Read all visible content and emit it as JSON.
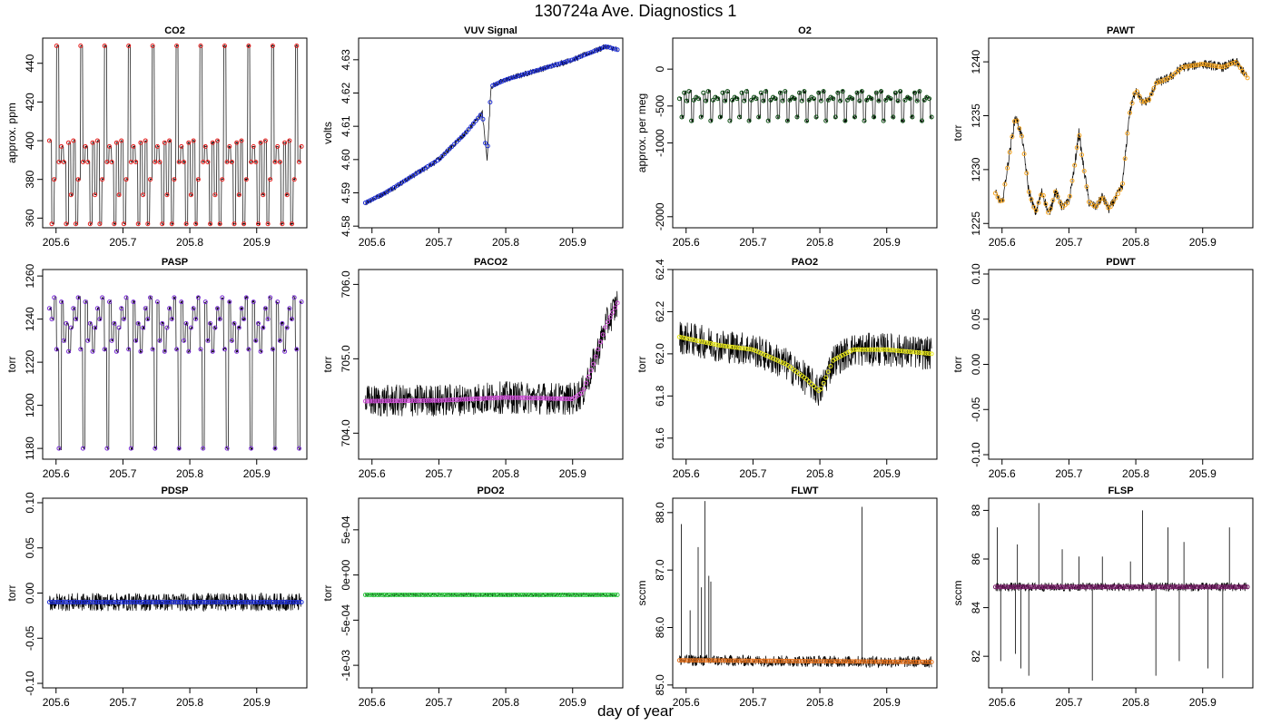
{
  "figure": {
    "title": "130724a   Ave. Diagnostics 1",
    "xlabel": "day of year"
  },
  "chart_data": [
    {
      "id": "co2",
      "type": "scatter",
      "title": "CO2",
      "ylabel": "approx. ppm",
      "xlim": [
        205.58,
        205.975
      ],
      "ylim": [
        355,
        453
      ],
      "xticks": [
        205.6,
        205.7,
        205.8,
        205.9
      ],
      "xtick_labels": [
        "205.6",
        "205.7",
        "205.8",
        "205.9"
      ],
      "yticks": [
        360,
        380,
        400,
        420,
        440
      ],
      "ytick_labels": [
        "360",
        "380",
        "400",
        "420",
        "440"
      ],
      "raw_series_color": "#000000",
      "avg_marker_color": "#e8201f",
      "levels_cycle": [
        400,
        357,
        380,
        449,
        389,
        397,
        389,
        357,
        399,
        372
      ],
      "level_days": 0.00357,
      "start": 205.59,
      "end": 205.967,
      "noise": 0.4
    },
    {
      "id": "vuv",
      "type": "scatter",
      "title": "VUV Signal",
      "ylabel": "volts",
      "xlim": [
        205.58,
        205.975
      ],
      "ylim": [
        4.5795,
        4.6365
      ],
      "xticks": [
        205.6,
        205.7,
        205.8,
        205.9
      ],
      "xtick_labels": [
        "205.6",
        "205.7",
        "205.8",
        "205.9"
      ],
      "yticks": [
        4.58,
        4.59,
        4.6,
        4.61,
        4.62,
        4.63
      ],
      "ytick_labels": [
        "4.58",
        "4.59",
        "4.60",
        "4.61",
        "4.62",
        "4.63"
      ],
      "raw_series_color": "#000000",
      "avg_marker_color": "#1f2fd6",
      "trend": [
        [
          205.59,
          4.587
        ],
        [
          205.62,
          4.59
        ],
        [
          205.66,
          4.595
        ],
        [
          205.7,
          4.6
        ],
        [
          205.74,
          4.608
        ],
        [
          205.765,
          4.614
        ],
        [
          205.772,
          4.6
        ],
        [
          205.775,
          4.611
        ],
        [
          205.778,
          4.622
        ],
        [
          205.8,
          4.624
        ],
        [
          205.85,
          4.627
        ],
        [
          205.9,
          4.63
        ],
        [
          205.95,
          4.634
        ],
        [
          205.967,
          4.633
        ]
      ],
      "start": 205.59,
      "end": 205.967,
      "noise": 0.0009
    },
    {
      "id": "o2",
      "type": "scatter",
      "title": "O2",
      "ylabel": "approx. per meg",
      "xlim": [
        205.58,
        205.975
      ],
      "ylim": [
        -2150,
        420
      ],
      "xticks": [
        205.6,
        205.7,
        205.8,
        205.9
      ],
      "xtick_labels": [
        "205.6",
        "205.7",
        "205.8",
        "205.9"
      ],
      "yticks": [
        -2000,
        -1000,
        -500,
        0
      ],
      "ytick_labels": [
        "-2000",
        "-1000",
        "-500",
        "0"
      ],
      "raw_series_color": "#000000",
      "avg_marker_color": "#0b4d12",
      "levels_cycle": [
        -400,
        -650,
        -320,
        -430,
        -300,
        -700,
        -420,
        -380
      ],
      "level_days": 0.00357,
      "start": 205.59,
      "end": 205.967,
      "noise": 25
    },
    {
      "id": "pawt",
      "type": "scatter",
      "title": "PAWT",
      "ylabel": "torr",
      "xlim": [
        205.58,
        205.975
      ],
      "ylim": [
        1224.6,
        1242.2
      ],
      "xticks": [
        205.6,
        205.7,
        205.8,
        205.9
      ],
      "xtick_labels": [
        "205.6",
        "205.7",
        "205.8",
        "205.9"
      ],
      "yticks": [
        1225,
        1230,
        1235,
        1240
      ],
      "ytick_labels": [
        "1225",
        "1230",
        "1235",
        "1240"
      ],
      "raw_series_color": "#000000",
      "avg_marker_color": "#f5a623",
      "trend": [
        [
          205.59,
          1227.8
        ],
        [
          205.6,
          1226.8
        ],
        [
          205.61,
          1231
        ],
        [
          205.62,
          1235
        ],
        [
          205.63,
          1233
        ],
        [
          205.64,
          1228
        ],
        [
          205.65,
          1226
        ],
        [
          205.66,
          1228
        ],
        [
          205.67,
          1225.8
        ],
        [
          205.68,
          1228
        ],
        [
          205.69,
          1226.5
        ],
        [
          205.7,
          1227
        ],
        [
          205.71,
          1231
        ],
        [
          205.715,
          1233.5
        ],
        [
          205.72,
          1231
        ],
        [
          205.73,
          1227
        ],
        [
          205.74,
          1226.5
        ],
        [
          205.75,
          1227.5
        ],
        [
          205.76,
          1226.3
        ],
        [
          205.78,
          1228.5
        ],
        [
          205.79,
          1235
        ],
        [
          205.8,
          1237.5
        ],
        [
          205.81,
          1236.2
        ],
        [
          205.82,
          1236.5
        ],
        [
          205.83,
          1238
        ],
        [
          205.85,
          1238.5
        ],
        [
          205.87,
          1239.5
        ],
        [
          205.9,
          1239.8
        ],
        [
          205.93,
          1239.5
        ],
        [
          205.95,
          1240
        ],
        [
          205.967,
          1238.5
        ]
      ],
      "start": 205.59,
      "end": 205.967,
      "noise": 0.45
    },
    {
      "id": "pasp",
      "type": "scatter",
      "title": "PASP",
      "ylabel": "torr",
      "xlim": [
        205.58,
        205.975
      ],
      "ylim": [
        1175,
        1263
      ],
      "xticks": [
        205.6,
        205.7,
        205.8,
        205.9
      ],
      "xtick_labels": [
        "205.6",
        "205.7",
        "205.8",
        "205.9"
      ],
      "yticks": [
        1180,
        1200,
        1220,
        1240,
        1260
      ],
      "ytick_labels": [
        "1180",
        "1200",
        "1220",
        "1240",
        "1260"
      ],
      "raw_series_color": "#000000",
      "avg_marker_color": "#7b2fd6",
      "levels_cycle": [
        1245,
        1240,
        1250,
        1226,
        1180,
        1248,
        1230,
        1238,
        1225,
        1236
      ],
      "level_days": 0.00357,
      "start": 205.59,
      "end": 205.967,
      "noise": 0.8
    },
    {
      "id": "paco2",
      "type": "scatter",
      "title": "PACO2",
      "ylabel": "torr",
      "xlim": [
        205.58,
        205.975
      ],
      "ylim": [
        703.65,
        706.2
      ],
      "xticks": [
        205.6,
        205.7,
        205.8,
        205.9
      ],
      "xtick_labels": [
        "205.6",
        "205.7",
        "205.8",
        "205.9"
      ],
      "yticks": [
        704.0,
        705.0,
        706.0
      ],
      "ytick_labels": [
        "704.0",
        "705.0",
        "706.0"
      ],
      "raw_series_color": "#000000",
      "avg_marker_color": "#d04fd8",
      "trend": [
        [
          205.59,
          704.43
        ],
        [
          205.7,
          704.44
        ],
        [
          205.8,
          704.48
        ],
        [
          205.9,
          704.46
        ],
        [
          205.915,
          704.55
        ],
        [
          205.93,
          704.9
        ],
        [
          205.95,
          705.45
        ],
        [
          205.967,
          705.75
        ]
      ],
      "start": 205.59,
      "end": 205.967,
      "noise": 0.22
    },
    {
      "id": "pao2",
      "type": "scatter",
      "title": "PAO2",
      "ylabel": "torr",
      "xlim": [
        205.58,
        205.975
      ],
      "ylim": [
        61.5,
        62.4
      ],
      "xticks": [
        205.6,
        205.7,
        205.8,
        205.9
      ],
      "xtick_labels": [
        "205.6",
        "205.7",
        "205.8",
        "205.9"
      ],
      "yticks": [
        61.6,
        61.8,
        62.0,
        62.2,
        62.4
      ],
      "ytick_labels": [
        "61.6",
        "61.8",
        "62.0",
        "62.2",
        "62.4"
      ],
      "raw_series_color": "#000000",
      "avg_marker_color": "#e8e81a",
      "trend": [
        [
          205.59,
          62.08
        ],
        [
          205.65,
          62.04
        ],
        [
          205.7,
          62.02
        ],
        [
          205.75,
          61.95
        ],
        [
          205.78,
          61.88
        ],
        [
          205.8,
          61.82
        ],
        [
          205.82,
          61.97
        ],
        [
          205.85,
          62.02
        ],
        [
          205.9,
          62.02
        ],
        [
          205.967,
          62.0
        ]
      ],
      "start": 205.59,
      "end": 205.967,
      "noise": 0.08
    },
    {
      "id": "pdwt",
      "type": "scatter",
      "title": "PDWT",
      "ylabel": "torr",
      "xlim": [
        205.58,
        205.975
      ],
      "ylim": [
        -0.105,
        0.105
      ],
      "xticks": [
        205.6,
        205.7,
        205.8,
        205.9
      ],
      "xtick_labels": [
        "205.6",
        "205.7",
        "205.8",
        "205.9"
      ],
      "yticks": [
        -0.1,
        -0.05,
        0.0,
        0.05,
        0.1
      ],
      "ytick_labels": [
        "-0.10",
        "-0.05",
        "0.00",
        "0.05",
        "0.10"
      ],
      "empty": true
    },
    {
      "id": "pdsp",
      "type": "scatter",
      "title": "PDSP",
      "ylabel": "torr",
      "xlim": [
        205.58,
        205.975
      ],
      "ylim": [
        -0.105,
        0.105
      ],
      "xticks": [
        205.6,
        205.7,
        205.8,
        205.9
      ],
      "xtick_labels": [
        "205.6",
        "205.7",
        "205.8",
        "205.9"
      ],
      "yticks": [
        -0.1,
        -0.05,
        0.0,
        0.05,
        0.1
      ],
      "ytick_labels": [
        "-0.10",
        "-0.05",
        "0.00",
        "0.05",
        "0.10"
      ],
      "raw_series_color": "#000000",
      "avg_marker_color": "#1f2fd6",
      "trend": [
        [
          205.59,
          -0.01
        ],
        [
          205.967,
          -0.01
        ]
      ],
      "start": 205.59,
      "end": 205.967,
      "noise": 0.01
    },
    {
      "id": "pdo2",
      "type": "scatter",
      "title": "PDO2",
      "ylabel": "torr",
      "xlim": [
        205.58,
        205.975
      ],
      "ylim": [
        -0.00125,
        0.00085
      ],
      "xticks": [
        205.6,
        205.7,
        205.8,
        205.9
      ],
      "xtick_labels": [
        "205.6",
        "205.7",
        "205.8",
        "205.9"
      ],
      "yticks": [
        -0.001,
        -0.0005,
        0.0,
        0.0005
      ],
      "ytick_labels": [
        "-1e-03",
        "-5e-04",
        "0e+00",
        "5e-04"
      ],
      "raw_series_color": "#000000",
      "avg_marker_color": "#2ecc40",
      "trend": [
        [
          205.59,
          -0.00022
        ],
        [
          205.967,
          -0.00022
        ]
      ],
      "start": 205.59,
      "end": 205.967,
      "noise": 2e-05
    },
    {
      "id": "flwt",
      "type": "scatter",
      "title": "FLWT",
      "ylabel": "sccm",
      "xlim": [
        205.58,
        205.975
      ],
      "ylim": [
        84.95,
        88.25
      ],
      "xticks": [
        205.6,
        205.7,
        205.8,
        205.9
      ],
      "xtick_labels": [
        "205.6",
        "205.7",
        "205.8",
        "205.9"
      ],
      "yticks": [
        85.0,
        86.0,
        87.0,
        88.0
      ],
      "ytick_labels": [
        "85.0",
        "86.0",
        "87.0",
        "88.0"
      ],
      "raw_series_color": "#000000",
      "avg_marker_color": "#e8741f",
      "trend": [
        [
          205.59,
          85.43
        ],
        [
          205.967,
          85.4
        ]
      ],
      "start": 205.59,
      "end": 205.967,
      "noise": 0.1,
      "spikes": [
        [
          205.593,
          87.8
        ],
        [
          205.606,
          86.3
        ],
        [
          205.618,
          87.4
        ],
        [
          205.623,
          86.7
        ],
        [
          205.628,
          88.2
        ],
        [
          205.634,
          86.9
        ],
        [
          205.637,
          86.8
        ],
        [
          205.863,
          88.1
        ]
      ]
    },
    {
      "id": "flsp",
      "type": "scatter",
      "title": "FLSP",
      "ylabel": "sccm",
      "xlim": [
        205.58,
        205.975
      ],
      "ylim": [
        80.7,
        88.5
      ],
      "xticks": [
        205.6,
        205.7,
        205.8,
        205.9
      ],
      "xtick_labels": [
        "205.6",
        "205.7",
        "205.8",
        "205.9"
      ],
      "yticks": [
        82,
        84,
        86,
        88
      ],
      "ytick_labels": [
        "82",
        "84",
        "86",
        "88"
      ],
      "raw_series_color": "#000000",
      "avg_marker_color": "#7b1f6b",
      "trend": [
        [
          205.59,
          84.85
        ],
        [
          205.967,
          84.85
        ]
      ],
      "start": 205.59,
      "end": 205.967,
      "noise": 0.18,
      "spikes": [
        [
          205.593,
          87.3
        ],
        [
          205.598,
          81.8
        ],
        [
          205.62,
          82.1
        ],
        [
          205.623,
          86.6
        ],
        [
          205.628,
          81.5
        ],
        [
          205.64,
          81.2
        ],
        [
          205.655,
          88.3
        ],
        [
          205.69,
          86.4
        ],
        [
          205.715,
          86.1
        ],
        [
          205.735,
          81.0
        ],
        [
          205.75,
          86.1
        ],
        [
          205.792,
          85.9
        ],
        [
          205.81,
          88.0
        ],
        [
          205.83,
          81.2
        ],
        [
          205.848,
          87.3
        ],
        [
          205.865,
          81.8
        ],
        [
          205.872,
          86.7
        ],
        [
          205.908,
          81.5
        ],
        [
          205.93,
          81.1
        ],
        [
          205.94,
          87.3
        ]
      ]
    }
  ]
}
